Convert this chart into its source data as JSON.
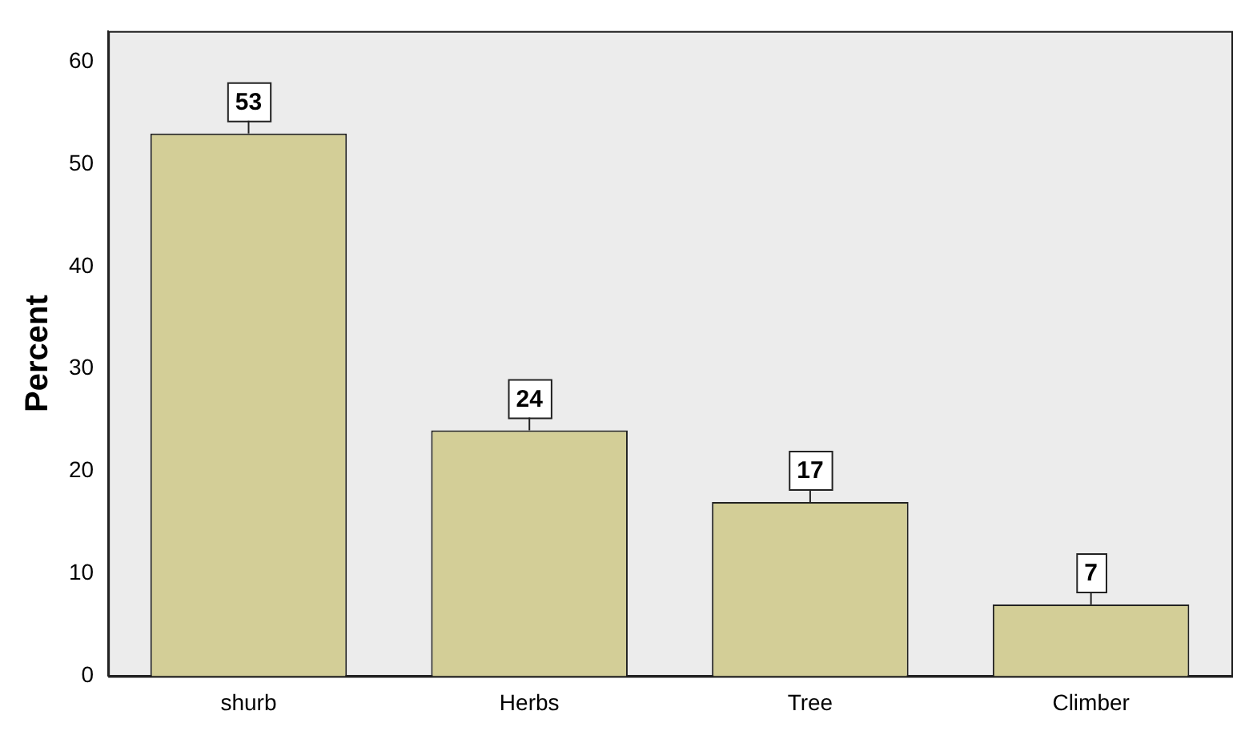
{
  "chart_data": {
    "type": "bar",
    "ylabel": "Percent",
    "categories": [
      "shurb",
      "Herbs",
      "Tree",
      "Climber"
    ],
    "values": [
      53,
      24,
      17,
      7
    ],
    "color": "#d3ce97",
    "ylim": [
      0,
      63
    ],
    "yticks": [
      0,
      10,
      20,
      30,
      40,
      50,
      60
    ],
    "grid": false,
    "data_labels": true
  }
}
